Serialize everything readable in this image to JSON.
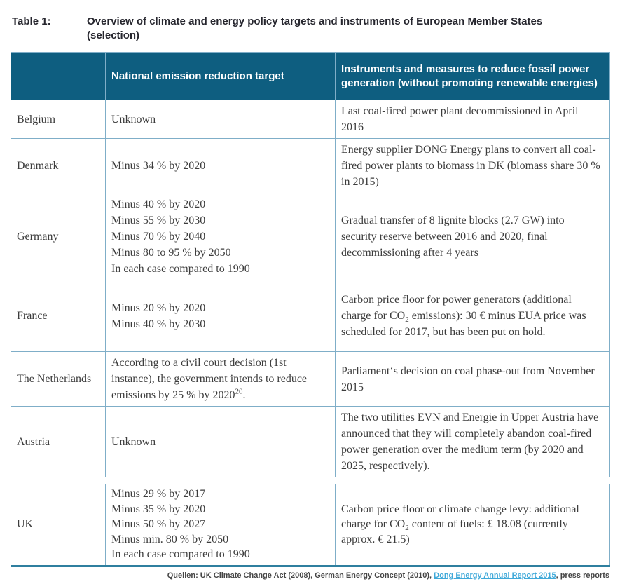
{
  "caption": {
    "label": "Table 1:",
    "text": "Overview of climate and energy policy targets and instruments of European Member States (selection)"
  },
  "table": {
    "headers": [
      "",
      "National emission reduction target",
      "Instruments and measures to reduce fossil power generation (without promoting renewable energies)"
    ],
    "rows": [
      {
        "country": "Belgium",
        "target_lines": [
          "Unknown"
        ],
        "instruments": {
          "pre": "Last coal-fired power plant decommissioned in April 2016"
        }
      },
      {
        "country": "Denmark",
        "target_lines": [
          "Minus 34 % by 2020"
        ],
        "instruments": {
          "pre": "Energy supplier DONG Energy plans to convert all coal-fired power plants to biomass in DK (biomass share 30 % in 2015)"
        }
      },
      {
        "country": "Germany",
        "target_lines": [
          "Minus 40 % by 2020",
          "Minus 55 % by 2030",
          "Minus 70 % by 2040",
          "Minus 80 to 95 % by 2050",
          "In each case compared to 1990"
        ],
        "instruments": {
          "pre": "Gradual transfer of 8 lignite blocks (2.7 GW) into security reserve between 2016 and 2020, final decommissioning after 4 years"
        }
      },
      {
        "country": "France",
        "target_lines": [
          "Minus 20 % by 2020",
          "Minus 40 % by 2030"
        ],
        "instruments": {
          "pre": "Carbon price floor for power generators (additional charge for CO",
          "sub": "2",
          "post": " emissions): 30 € minus EUA price was scheduled for 2017, but has been put on hold."
        }
      },
      {
        "country": "The Netherlands",
        "target_rich": {
          "pre": "According to a civil court decision (1st instance), the government intends to reduce emissions by 25 % by 2020",
          "sup": "20",
          "post": "."
        },
        "instruments": {
          "pre": "Parliament‘s decision on coal phase-out from November 2015"
        }
      },
      {
        "country": "Austria",
        "target_lines": [
          "Unknown"
        ],
        "instruments": {
          "pre": "The two utilities EVN and Energie in Upper Austria have announced that they will completely abandon coal-fired power generation over the medium term (by 2020 and 2025, respectively)."
        }
      },
      {
        "country": "UK",
        "target_lines": [
          "Minus 29 % by 2017",
          "Minus 35 % by 2020",
          "Minus 50 % by 2027",
          "Minus min. 80 % by 2050",
          "In each case compared to 1990"
        ],
        "instruments": {
          "pre": "Carbon price floor or climate change levy: additional charge for CO",
          "sub": "2",
          "post": " content of fuels: £ 18.08 (currently approx. € 21.5)"
        }
      }
    ]
  },
  "footer": {
    "prefix": "Quellen: UK Climate Change Act (2008), German Energy Concept (2010), ",
    "link_text": "Dong Energy Annual Report 2015",
    "suffix": ", press reports"
  },
  "colors": {
    "header_bg": "#0e5e80",
    "border": "#7faec8",
    "bottom_bar": "#2f7f9f",
    "link": "#3fa9d9",
    "body_text": "#3c3c3c",
    "header_text": "#ffffff"
  }
}
